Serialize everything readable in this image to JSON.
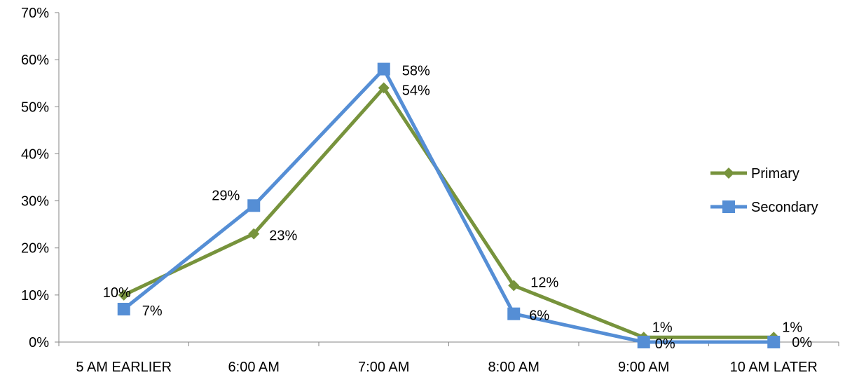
{
  "chart_data": {
    "type": "line",
    "categories": [
      "5 AM EARLIER",
      "6:00 AM",
      "7:00 AM",
      "8:00 AM",
      "9:00 AM",
      "10 AM LATER"
    ],
    "series": [
      {
        "name": "Primary",
        "values": [
          10,
          23,
          54,
          12,
          1,
          1
        ],
        "labels": [
          "10%",
          "23%",
          "54%",
          "12%",
          "1%",
          "1%"
        ],
        "color": "#77933C",
        "marker": "diamond"
      },
      {
        "name": "Secondary",
        "values": [
          7,
          29,
          58,
          6,
          0,
          0
        ],
        "labels": [
          "7%",
          "29%",
          "58%",
          "6%",
          "0%",
          "0%"
        ],
        "color": "#558ED5",
        "marker": "square"
      }
    ],
    "ylim": [
      0,
      70
    ],
    "yticks": [
      0,
      10,
      20,
      30,
      40,
      50,
      60,
      70
    ],
    "ytick_labels": [
      "0%",
      "10%",
      "20%",
      "30%",
      "40%",
      "50%",
      "60%",
      "70%"
    ],
    "title": "",
    "xlabel": "",
    "ylabel": "",
    "grid": false,
    "legend_position": "right"
  }
}
